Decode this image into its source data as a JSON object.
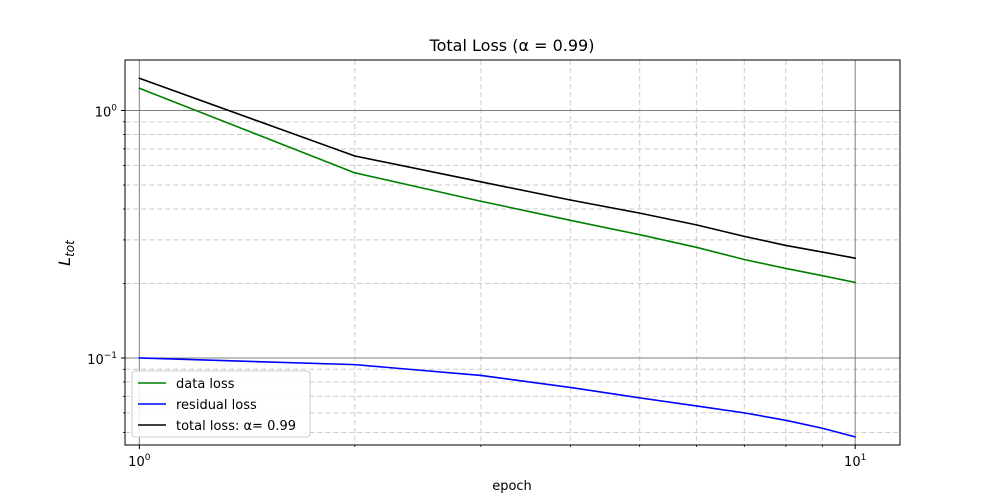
{
  "chart_data": {
    "type": "line",
    "title": "Total Loss (α = 0.99)",
    "xlabel": "epoch",
    "ylabel": {
      "main": "L",
      "sub": "tot"
    },
    "xscale": "log",
    "yscale": "log",
    "xlim": [
      0.955,
      11.55
    ],
    "ylim": [
      0.0445,
      1.6
    ],
    "grid": "on",
    "x_major_ticks": [
      {
        "value": 1,
        "base": "10",
        "exp": "0"
      },
      {
        "value": 10,
        "base": "10",
        "exp": "1"
      }
    ],
    "y_major_ticks": [
      {
        "value": 0.1,
        "base": "10",
        "exp": "−1"
      },
      {
        "value": 1,
        "base": "10",
        "exp": "0"
      }
    ],
    "x_minor_ticks": [
      2,
      3,
      4,
      5,
      6,
      7,
      8,
      9
    ],
    "y_minor_ticks": [
      0.05,
      0.06,
      0.07,
      0.08,
      0.09,
      0.2,
      0.3,
      0.4,
      0.5,
      0.6,
      0.7,
      0.8,
      0.9
    ],
    "x": [
      1,
      2,
      3,
      4,
      5,
      6,
      7,
      8,
      9,
      10
    ],
    "series": [
      {
        "name": "data loss",
        "color": "#008000",
        "values": [
          1.23,
          0.56,
          0.43,
          0.36,
          0.315,
          0.28,
          0.25,
          0.23,
          0.215,
          0.202
        ]
      },
      {
        "name": "residual loss",
        "color": "#0000ff",
        "values": [
          0.1,
          0.094,
          0.085,
          0.076,
          0.069,
          0.064,
          0.06,
          0.056,
          0.052,
          0.048
        ]
      },
      {
        "name": "total loss: α= 0.99",
        "color": "#000000",
        "values": [
          1.35,
          0.655,
          0.515,
          0.435,
          0.385,
          0.345,
          0.31,
          0.285,
          0.268,
          0.253
        ]
      }
    ],
    "legend": "lower-left"
  }
}
